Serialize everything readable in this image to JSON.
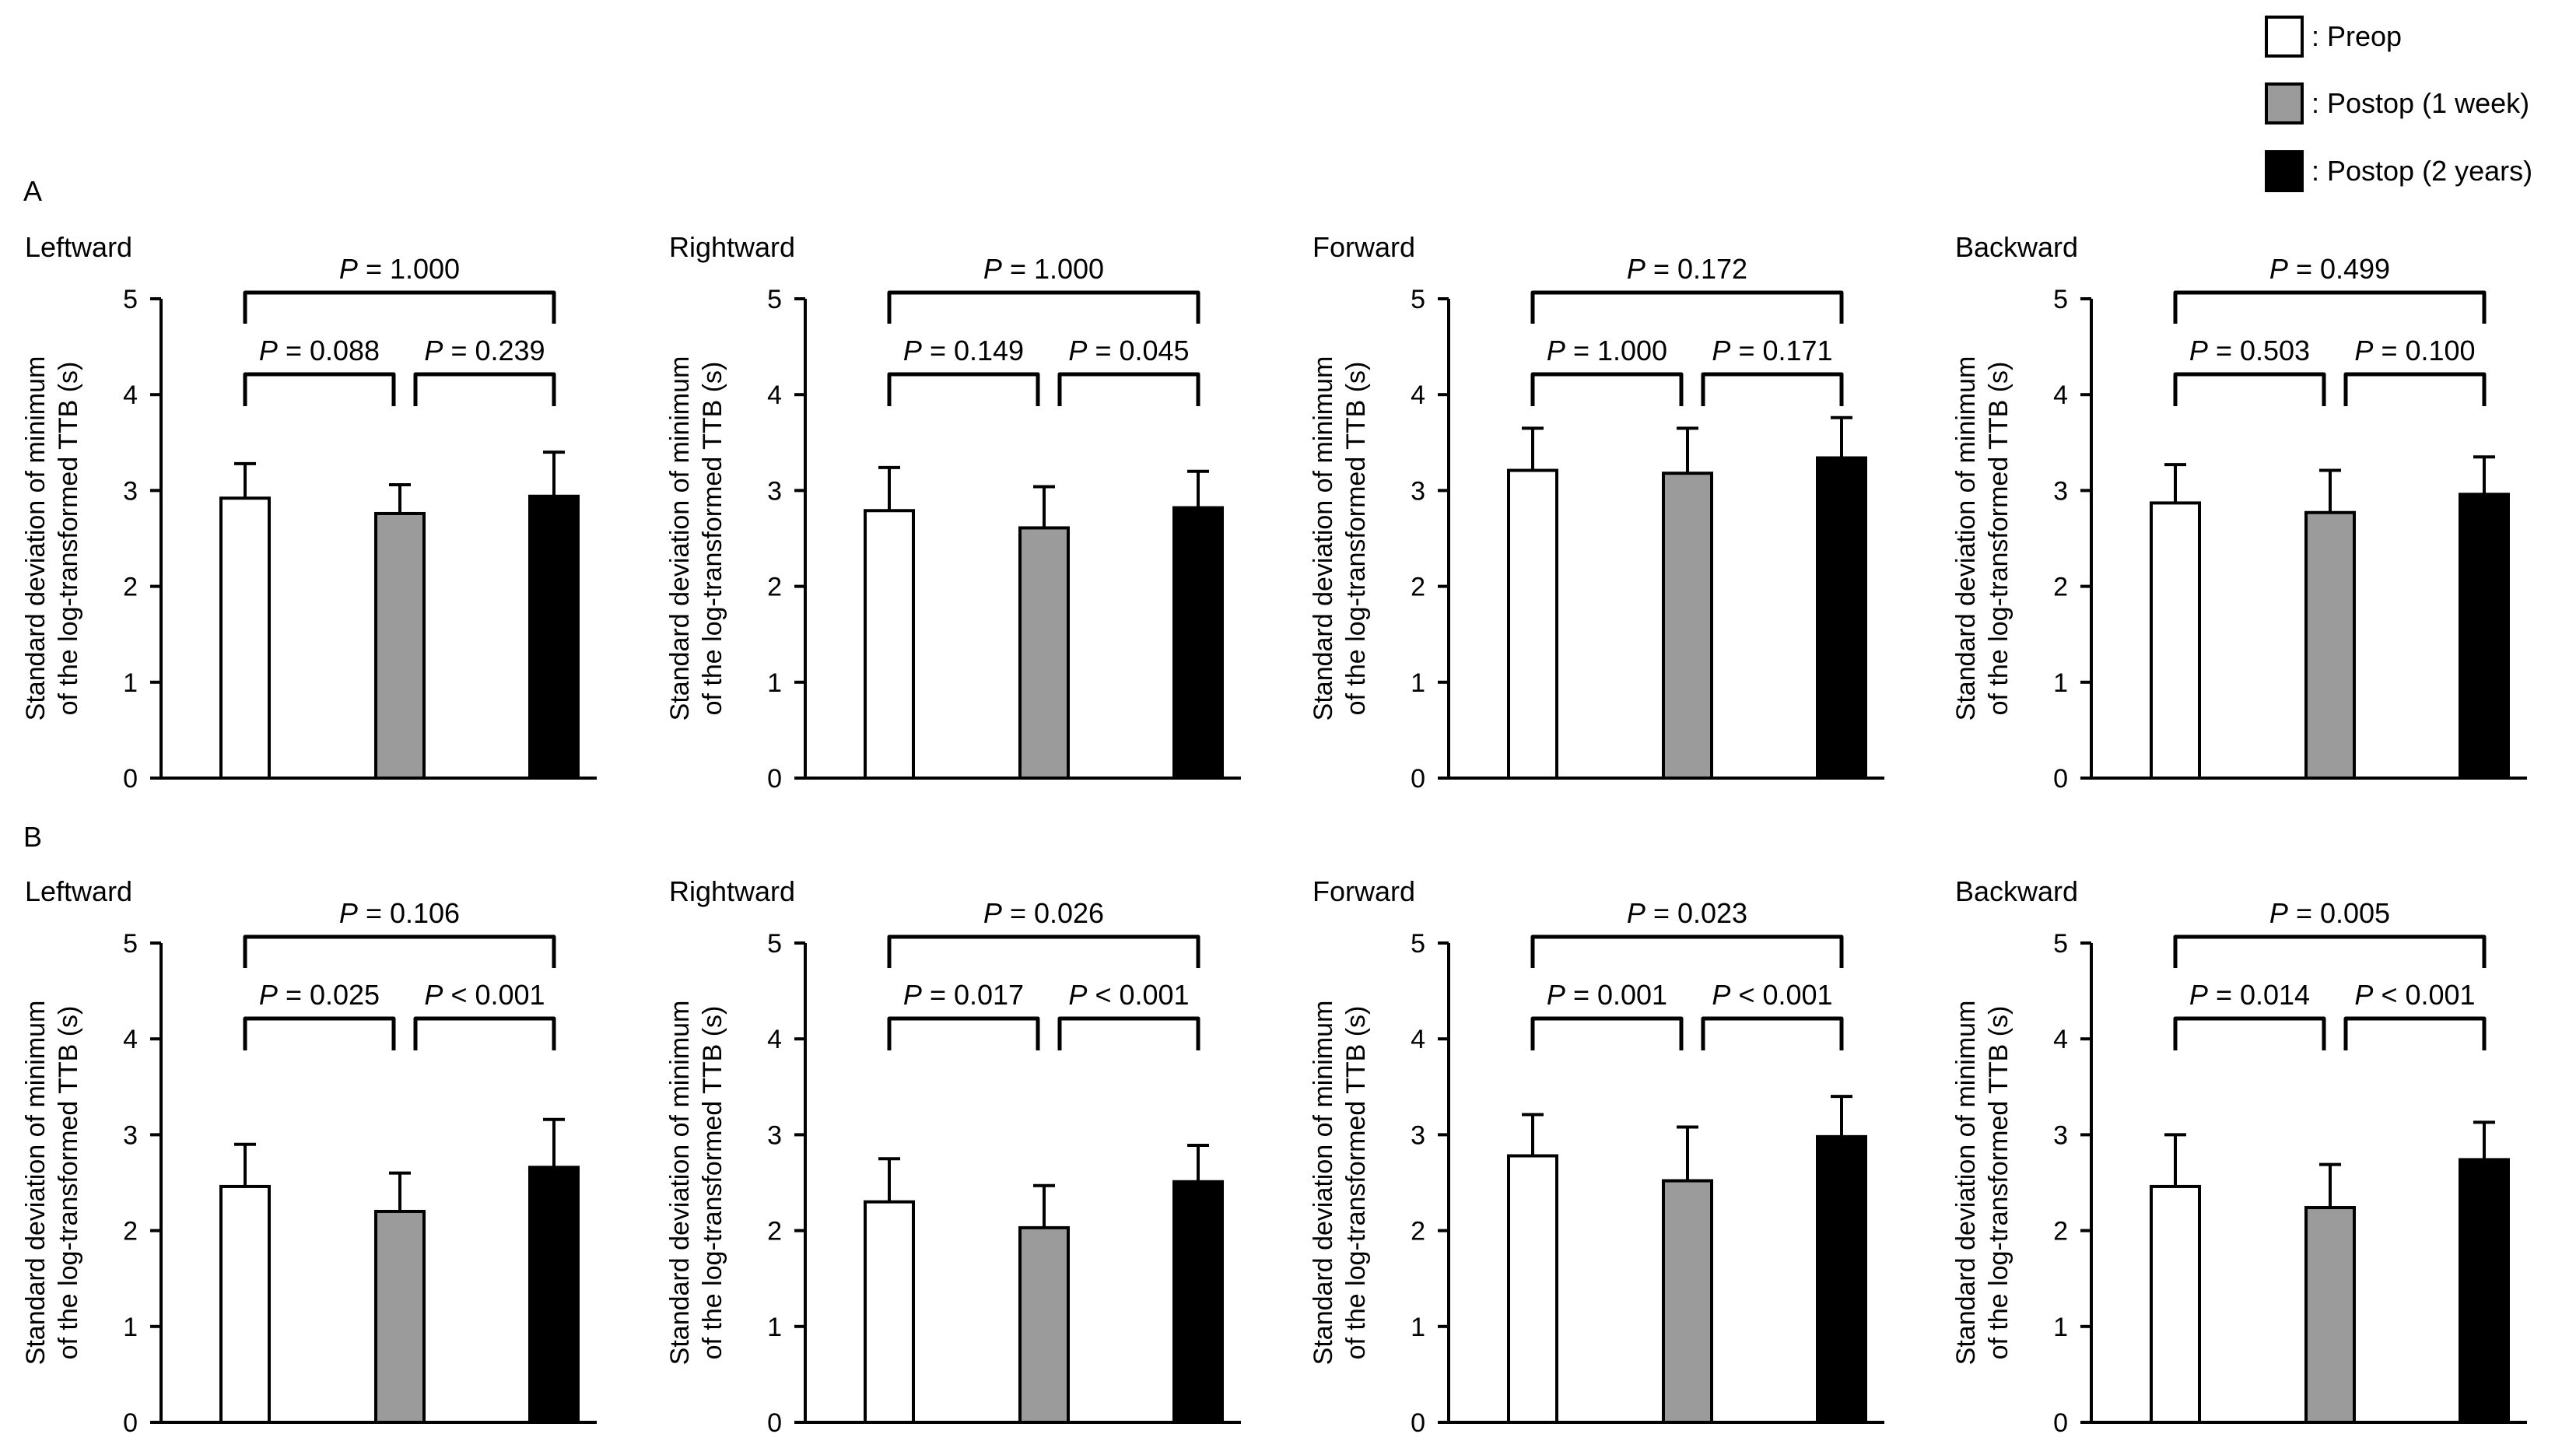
{
  "legend": [
    {
      "label": ": Preop",
      "color": "#ffffff"
    },
    {
      "label": ": Postop (1 week)",
      "color": "#9b9b9b"
    },
    {
      "label": ": Postop (2 years)",
      "color": "#000000"
    }
  ],
  "panel_labels": [
    "A",
    "B"
  ],
  "chart_data": [
    {
      "type": "bar",
      "panel": "A",
      "title": "Leftward",
      "ylabel": [
        "Standard deviation of minimum",
        "of the log-transformed  TTB (s)"
      ],
      "ylim": [
        0,
        5
      ],
      "yticks": [
        "0",
        "1",
        "2",
        "3",
        "4",
        "5"
      ],
      "categories": [
        "Preop",
        "Postop (1 week)",
        "Postop (2 years)"
      ],
      "values": [
        2.92,
        2.76,
        2.94
      ],
      "errors": [
        0.36,
        0.3,
        0.46
      ],
      "pvalues": {
        "preop_vs_2years": "P = 1.000",
        "preop_vs_1week": "P = 0.088",
        "1week_vs_2years": "P = 0.239"
      }
    },
    {
      "type": "bar",
      "panel": "A",
      "title": "Rightward",
      "ylabel": [
        "Standard deviation of minimum",
        "of the log-transformed  TTB (s)"
      ],
      "ylim": [
        0,
        5
      ],
      "yticks": [
        "0",
        "1",
        "2",
        "3",
        "4",
        "5"
      ],
      "categories": [
        "Preop",
        "Postop (1 week)",
        "Postop (2 years)"
      ],
      "values": [
        2.79,
        2.61,
        2.82
      ],
      "errors": [
        0.45,
        0.43,
        0.38
      ],
      "pvalues": {
        "preop_vs_2years": "P = 1.000",
        "preop_vs_1week": "P = 0.149",
        "1week_vs_2years": "P = 0.045"
      }
    },
    {
      "type": "bar",
      "panel": "A",
      "title": "Forward",
      "ylabel": [
        "Standard deviation of minimum",
        "of the log-transformed  TTB (s)"
      ],
      "ylim": [
        0,
        5
      ],
      "yticks": [
        "0",
        "1",
        "2",
        "3",
        "4",
        "5"
      ],
      "categories": [
        "Preop",
        "Postop (1 week)",
        "Postop (2 years)"
      ],
      "values": [
        3.21,
        3.18,
        3.34
      ],
      "errors": [
        0.44,
        0.47,
        0.42
      ],
      "pvalues": {
        "preop_vs_2years": "P = 0.172",
        "preop_vs_1week": "P = 1.000",
        "1week_vs_2years": "P = 0.171"
      }
    },
    {
      "type": "bar",
      "panel": "A",
      "title": "Backward",
      "ylabel": [
        "Standard deviation of minimum",
        "of the log-transformed  TTB (s)"
      ],
      "ylim": [
        0,
        5
      ],
      "yticks": [
        "0",
        "1",
        "2",
        "3",
        "4",
        "5"
      ],
      "categories": [
        "Preop",
        "Postop (1 week)",
        "Postop (2 years)"
      ],
      "values": [
        2.87,
        2.77,
        2.96
      ],
      "errors": [
        0.4,
        0.44,
        0.39
      ],
      "pvalues": {
        "preop_vs_2years": "P = 0.499",
        "preop_vs_1week": "P = 0.503",
        "1week_vs_2years": "P = 0.100"
      }
    },
    {
      "type": "bar",
      "panel": "B",
      "title": "Leftward",
      "ylabel": [
        "Standard deviation of minimum",
        "of the log-transformed  TTB (s)"
      ],
      "ylim": [
        0,
        5
      ],
      "yticks": [
        "0",
        "1",
        "2",
        "3",
        "4",
        "5"
      ],
      "categories": [
        "Preop",
        "Postop (1 week)",
        "Postop (2 years)"
      ],
      "values": [
        2.46,
        2.2,
        2.66
      ],
      "errors": [
        0.44,
        0.4,
        0.5
      ],
      "pvalues": {
        "preop_vs_2years": "P = 0.106",
        "preop_vs_1week": "P = 0.025",
        "1week_vs_2years": "P < 0.001"
      }
    },
    {
      "type": "bar",
      "panel": "B",
      "title": "Rightward",
      "ylabel": [
        "Standard deviation of minimum",
        "of the log-transformed  TTB (s)"
      ],
      "ylim": [
        0,
        5
      ],
      "yticks": [
        "0",
        "1",
        "2",
        "3",
        "4",
        "5"
      ],
      "categories": [
        "Preop",
        "Postop (1 week)",
        "Postop (2 years)"
      ],
      "values": [
        2.3,
        2.03,
        2.51
      ],
      "errors": [
        0.45,
        0.44,
        0.38
      ],
      "pvalues": {
        "preop_vs_2years": "P = 0.026",
        "preop_vs_1week": "P = 0.017",
        "1week_vs_2years": "P < 0.001"
      }
    },
    {
      "type": "bar",
      "panel": "B",
      "title": "Forward",
      "ylabel": [
        "Standard deviation of minimum",
        "of the log-transformed  TTB (s)"
      ],
      "ylim": [
        0,
        5
      ],
      "yticks": [
        "0",
        "1",
        "2",
        "3",
        "4",
        "5"
      ],
      "categories": [
        "Preop",
        "Postop (1 week)",
        "Postop (2 years)"
      ],
      "values": [
        2.78,
        2.52,
        2.98
      ],
      "errors": [
        0.43,
        0.56,
        0.42
      ],
      "pvalues": {
        "preop_vs_2years": "P = 0.023",
        "preop_vs_1week": "P = 0.001",
        "1week_vs_2years": "P < 0.001"
      }
    },
    {
      "type": "bar",
      "panel": "B",
      "title": "Backward",
      "ylabel": [
        "Standard deviation of minimum",
        "of the log-transformed  TTB (s)"
      ],
      "ylim": [
        0,
        5
      ],
      "yticks": [
        "0",
        "1",
        "2",
        "3",
        "4",
        "5"
      ],
      "categories": [
        "Preop",
        "Postop (1 week)",
        "Postop (2 years)"
      ],
      "values": [
        2.46,
        2.24,
        2.74
      ],
      "errors": [
        0.54,
        0.45,
        0.39
      ],
      "pvalues": {
        "preop_vs_2years": "P = 0.005",
        "preop_vs_1week": "P = 0.014",
        "1week_vs_2years": "P < 0.001"
      }
    }
  ]
}
